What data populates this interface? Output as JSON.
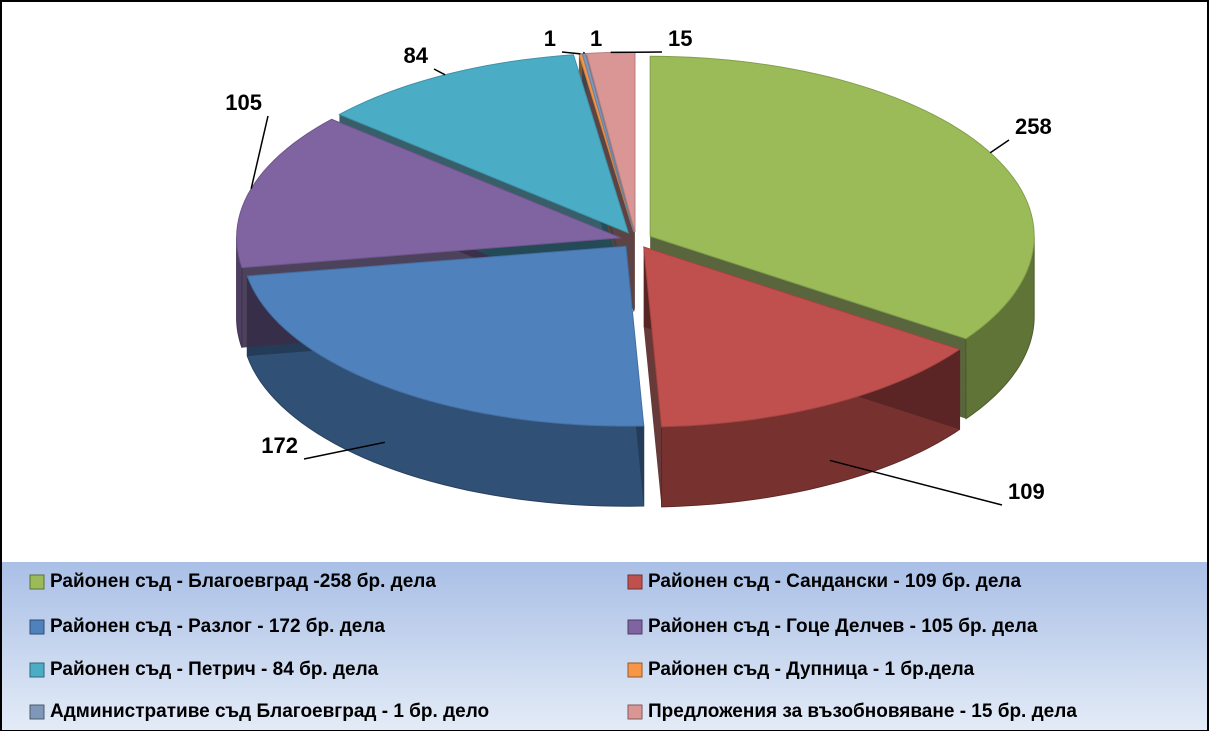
{
  "chart_data": {
    "type": "pie",
    "categories": [
      "Районен съд - Благоевград -258 бр. дела",
      "Районен съд - Сандански - 109 бр. дела",
      "Районен съд - Разлог - 172 бр. дела",
      "Районен съд - Гоце Делчев - 105 бр. дела",
      "Районен съд - Петрич - 84 бр. дела",
      "Районен съд - Дупница - 1 бр.дела",
      "Административе съд Благоевград - 1 бр. дело",
      "Предложения за възобновяване - 15 бр. дела"
    ],
    "values": [
      258,
      109,
      172,
      105,
      84,
      1,
      1,
      15
    ],
    "colors": [
      "#9bbb59",
      "#c0504d",
      "#4f81bd",
      "#8064a2",
      "#4bacc6",
      "#f79646",
      "#7f97b8",
      "#d99694"
    ],
    "legend": "bottom"
  }
}
